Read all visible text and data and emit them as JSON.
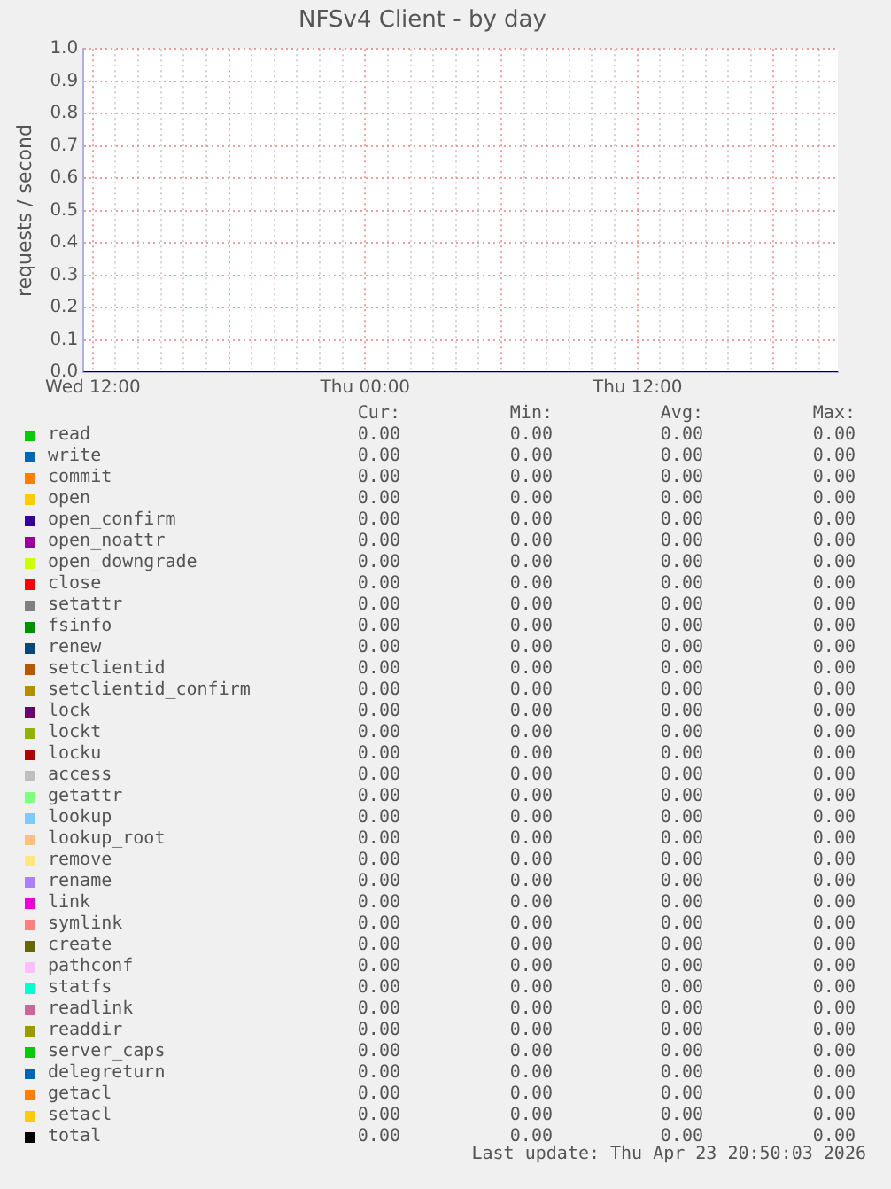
{
  "chart_data": {
    "type": "line",
    "title": "NFSv4 Client - by day",
    "ylabel": "requests / second",
    "x": [
      "2026-04-22T11:35",
      "2026-04-23T20:50"
    ],
    "xlim": [
      "2026-04-22T11:35",
      "2026-04-23T20:50"
    ],
    "xticks": [
      {
        "value": "2026-04-22T12:00",
        "label": "Wed 12:00"
      },
      {
        "value": "2026-04-22T13:00",
        "label": null
      },
      {
        "value": "2026-04-22T14:00",
        "label": null
      },
      {
        "value": "2026-04-22T15:00",
        "label": null
      },
      {
        "value": "2026-04-22T16:00",
        "label": null
      },
      {
        "value": "2026-04-22T17:00",
        "label": null
      },
      {
        "value": "2026-04-22T18:00",
        "label": null
      },
      {
        "value": "2026-04-22T19:00",
        "label": null
      },
      {
        "value": "2026-04-22T20:00",
        "label": null
      },
      {
        "value": "2026-04-22T21:00",
        "label": null
      },
      {
        "value": "2026-04-22T22:00",
        "label": null
      },
      {
        "value": "2026-04-22T23:00",
        "label": null
      },
      {
        "value": "2026-04-23T00:00",
        "label": "Thu 00:00"
      },
      {
        "value": "2026-04-23T01:00",
        "label": null
      },
      {
        "value": "2026-04-23T02:00",
        "label": null
      },
      {
        "value": "2026-04-23T03:00",
        "label": null
      },
      {
        "value": "2026-04-23T04:00",
        "label": null
      },
      {
        "value": "2026-04-23T05:00",
        "label": null
      },
      {
        "value": "2026-04-23T06:00",
        "label": null
      },
      {
        "value": "2026-04-23T07:00",
        "label": null
      },
      {
        "value": "2026-04-23T08:00",
        "label": null
      },
      {
        "value": "2026-04-23T09:00",
        "label": null
      },
      {
        "value": "2026-04-23T10:00",
        "label": null
      },
      {
        "value": "2026-04-23T11:00",
        "label": null
      },
      {
        "value": "2026-04-23T12:00",
        "label": "Thu 12:00"
      },
      {
        "value": "2026-04-23T13:00",
        "label": null
      },
      {
        "value": "2026-04-23T14:00",
        "label": null
      },
      {
        "value": "2026-04-23T15:00",
        "label": null
      },
      {
        "value": "2026-04-23T16:00",
        "label": null
      },
      {
        "value": "2026-04-23T17:00",
        "label": null
      },
      {
        "value": "2026-04-23T18:00",
        "label": null
      },
      {
        "value": "2026-04-23T19:00",
        "label": null
      },
      {
        "value": "2026-04-23T20:00",
        "label": null
      }
    ],
    "ylim": [
      0,
      1
    ],
    "yticks": [
      {
        "value": 0,
        "label": "0.0"
      },
      0.1,
      0.2,
      0.3,
      0.4,
      0.5,
      0.6,
      0.7,
      0.8,
      0.9,
      {
        "value": 1,
        "label": "1.0"
      }
    ],
    "grid": true,
    "legend": "bottom",
    "marker": "none",
    "line_style": "solid",
    "series": [
      {
        "name": "read",
        "color": "#00cc00",
        "values": [
          null,
          null
        ]
      },
      {
        "name": "write",
        "color": "#0066b3",
        "values": [
          null,
          null
        ]
      },
      {
        "name": "commit",
        "color": "#ff8000",
        "values": [
          null,
          null
        ]
      },
      {
        "name": "open",
        "color": "#ffcc00",
        "values": [
          null,
          null
        ]
      },
      {
        "name": "open_confirm",
        "color": "#330099",
        "values": [
          null,
          null
        ]
      },
      {
        "name": "open_noattr",
        "color": "#990099",
        "values": [
          null,
          null
        ]
      },
      {
        "name": "open_downgrade",
        "color": "#ccff00",
        "values": [
          null,
          null
        ]
      },
      {
        "name": "close",
        "color": "#ff0000",
        "values": [
          null,
          null
        ]
      },
      {
        "name": "setattr",
        "color": "#808080",
        "values": [
          null,
          null
        ]
      },
      {
        "name": "fsinfo",
        "color": "#008f00",
        "values": [
          null,
          null
        ]
      },
      {
        "name": "renew",
        "color": "#00487d",
        "values": [
          null,
          null
        ]
      },
      {
        "name": "setclientid",
        "color": "#b35a00",
        "values": [
          null,
          null
        ]
      },
      {
        "name": "setclientid_confirm",
        "color": "#b38f00",
        "values": [
          null,
          null
        ]
      },
      {
        "name": "lock",
        "color": "#6b006b",
        "values": [
          null,
          null
        ]
      },
      {
        "name": "lockt",
        "color": "#8fb300",
        "values": [
          null,
          null
        ]
      },
      {
        "name": "locku",
        "color": "#b30000",
        "values": [
          null,
          null
        ]
      },
      {
        "name": "access",
        "color": "#bebebe",
        "values": [
          null,
          null
        ]
      },
      {
        "name": "getattr",
        "color": "#80ff80",
        "values": [
          null,
          null
        ]
      },
      {
        "name": "lookup",
        "color": "#80c9ff",
        "values": [
          null,
          null
        ]
      },
      {
        "name": "lookup_root",
        "color": "#ffc080",
        "values": [
          null,
          null
        ]
      },
      {
        "name": "remove",
        "color": "#ffe680",
        "values": [
          null,
          null
        ]
      },
      {
        "name": "rename",
        "color": "#aa80ff",
        "values": [
          null,
          null
        ]
      },
      {
        "name": "link",
        "color": "#ee00cc",
        "values": [
          null,
          null
        ]
      },
      {
        "name": "symlink",
        "color": "#ff8080",
        "values": [
          null,
          null
        ]
      },
      {
        "name": "create",
        "color": "#666600",
        "values": [
          null,
          null
        ]
      },
      {
        "name": "pathconf",
        "color": "#ffbfff",
        "values": [
          null,
          null
        ]
      },
      {
        "name": "statfs",
        "color": "#00ffcc",
        "values": [
          null,
          null
        ]
      },
      {
        "name": "readlink",
        "color": "#cc6699",
        "values": [
          null,
          null
        ]
      },
      {
        "name": "readdir",
        "color": "#999900",
        "values": [
          null,
          null
        ]
      },
      {
        "name": "server_caps",
        "color": "#00cc00",
        "values": [
          null,
          null
        ]
      },
      {
        "name": "delegreturn",
        "color": "#0066b3",
        "values": [
          null,
          null
        ]
      },
      {
        "name": "getacl",
        "color": "#ff8000",
        "values": [
          null,
          null
        ]
      },
      {
        "name": "setacl",
        "color": "#ffcc00",
        "values": [
          null,
          null
        ]
      },
      {
        "name": "total",
        "color": "#000000",
        "values": [
          0,
          0
        ]
      }
    ],
    "annotations": [
      "Cur:",
      "Min:",
      "Avg:",
      "Max:",
      "0.00",
      "0.00",
      "0.00",
      "0.00",
      "0.00",
      "0.00",
      "0.00",
      "0.00",
      "0.00",
      "0.00",
      "0.00",
      "0.00",
      "0.00",
      "0.00",
      "0.00",
      "0.00",
      "0.00",
      "0.00",
      "0.00",
      "0.00",
      "0.00",
      "0.00",
      "0.00",
      "0.00",
      "0.00",
      "0.00",
      "0.00",
      "0.00",
      "0.00",
      "0.00",
      "0.00",
      "0.00",
      "0.00",
      "0.00",
      "0.00",
      "0.00",
      "0.00",
      "0.00",
      "0.00",
      "0.00",
      "0.00",
      "0.00",
      "0.00",
      "0.00",
      "0.00",
      "0.00",
      "0.00",
      "0.00",
      "0.00",
      "0.00",
      "0.00",
      "0.00",
      "0.00",
      "0.00",
      "0.00",
      "0.00",
      "0.00",
      "0.00",
      "0.00",
      "0.00",
      "0.00",
      "0.00",
      "0.00",
      "0.00",
      "0.00",
      "0.00",
      "0.00",
      "0.00",
      "0.00",
      "0.00",
      "0.00",
      "0.00",
      "0.00",
      "0.00",
      "0.00",
      "0.00",
      "0.00",
      "0.00",
      "0.00",
      "0.00",
      "0.00",
      "0.00",
      "0.00",
      "0.00",
      "0.00",
      "0.00",
      "0.00",
      "0.00",
      "0.00",
      "0.00",
      "0.00",
      "0.00",
      "0.00",
      "0.00",
      "0.00",
      "0.00",
      "0.00",
      "0.00",
      "0.00",
      "0.00",
      "0.00",
      "0.00",
      "0.00",
      "0.00",
      "0.00",
      "0.00",
      "0.00",
      "0.00",
      "0.00",
      "0.00",
      "0.00",
      "0.00",
      "0.00",
      "0.00",
      "0.00",
      "0.00",
      "0.00",
      "0.00",
      "0.00",
      "0.00",
      "0.00",
      "0.00",
      "0.00",
      "0.00",
      "0.00",
      "0.00",
      "0.00",
      "0.00",
      "0.00",
      "0.00",
      "0.00",
      "0.00",
      "0.00",
      "0.00",
      "0.00",
      "0.00",
      "Last update: Thu Apr 23 20:50:03 2026"
    ]
  }
}
